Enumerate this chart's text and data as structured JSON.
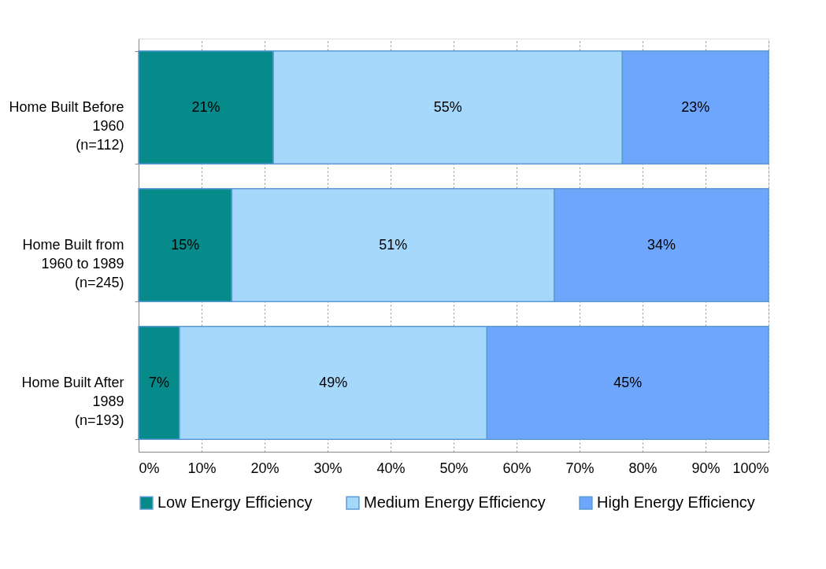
{
  "chart_data": {
    "type": "bar",
    "orientation": "horizontal",
    "stacked": true,
    "categories": [
      "Home Built Before\n1960\n(n=112)",
      "Home Built from\n1960 to 1989\n(n=245)",
      "Home Built After\n1989\n(n=193)"
    ],
    "series": [
      {
        "name": "Low Energy Efficiency",
        "color": "#078a8a",
        "values": [
          21.4,
          14.8,
          6.5
        ],
        "value_labels": [
          "21%",
          "15%",
          "7%"
        ]
      },
      {
        "name": "Medium Energy Efficiency",
        "color": "#a6d8fc",
        "values": [
          55.4,
          51.2,
          48.8
        ],
        "value_labels": [
          "55%",
          "51%",
          "49%"
        ]
      },
      {
        "name": "High Energy Efficiency",
        "color": "#6ea6fc",
        "values": [
          23.2,
          34.0,
          44.7
        ],
        "value_labels": [
          "23%",
          "34%",
          "45%"
        ]
      }
    ],
    "xlim": [
      0,
      100
    ],
    "xticks": [
      {
        "value": 0,
        "label": "0%"
      },
      {
        "value": 10,
        "label": "10%"
      },
      {
        "value": 20,
        "label": "20%"
      },
      {
        "value": 30,
        "label": "30%"
      },
      {
        "value": 40,
        "label": "40%"
      },
      {
        "value": 50,
        "label": "50%"
      },
      {
        "value": 60,
        "label": "60%"
      },
      {
        "value": 70,
        "label": "70%"
      },
      {
        "value": 80,
        "label": "80%"
      },
      {
        "value": 90,
        "label": "90%"
      },
      {
        "value": 100,
        "label": "100%"
      }
    ],
    "grid": "x",
    "legend": "bottom"
  }
}
